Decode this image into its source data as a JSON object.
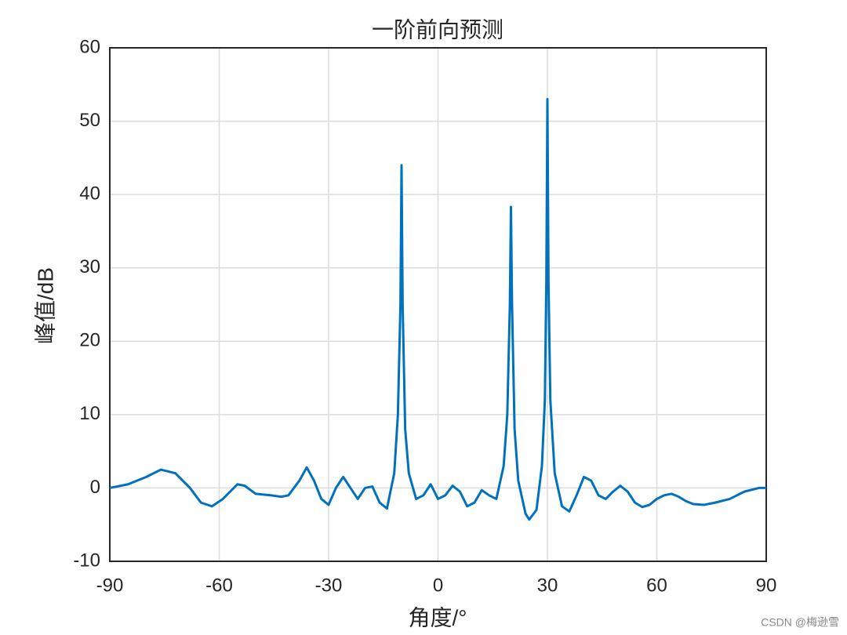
{
  "chart_data": {
    "type": "line",
    "title": "一阶前向预测",
    "x_label": "角度/°",
    "y_label": "峰值/dB",
    "x": [
      -90,
      -85,
      -80,
      -76,
      -72,
      -68,
      -65,
      -62,
      -59,
      -55,
      -53,
      -50,
      -46,
      -43,
      -41,
      -38,
      -36,
      -34,
      -32,
      -30,
      -28,
      -26,
      -24,
      -22,
      -20,
      -18,
      -16,
      -14,
      -12,
      -11,
      -10.3,
      -10,
      -9.7,
      -9,
      -8,
      -6,
      -4,
      -2,
      0,
      2,
      4,
      6,
      8,
      10,
      12,
      14,
      16,
      18,
      19,
      19.7,
      20,
      20.3,
      21,
      22,
      24,
      25,
      27,
      28.5,
      29.3,
      29.7,
      30,
      30.3,
      30.8,
      32,
      34,
      36,
      38,
      40,
      42,
      44,
      46,
      48,
      50,
      52,
      54,
      56,
      58,
      60,
      62,
      64,
      66,
      68,
      70,
      73,
      76,
      80,
      84,
      88,
      90
    ],
    "series": [
      {
        "color": "#0072bd",
        "values": [
          0,
          0.5,
          1.5,
          2.5,
          2,
          0,
          -2,
          -2.5,
          -1.5,
          0.5,
          0.3,
          -0.8,
          -1,
          -1.2,
          -1,
          1,
          2.8,
          1,
          -1.5,
          -2.3,
          0,
          1.5,
          0,
          -1.5,
          0,
          0.2,
          -2,
          -2.8,
          2,
          10,
          25,
          44,
          25,
          8,
          2,
          -1.5,
          -1,
          0.5,
          -1.5,
          -1,
          0.3,
          -0.5,
          -2.5,
          -2,
          -0.3,
          -1,
          -1.5,
          3,
          10,
          25,
          38.3,
          25,
          8,
          1,
          -3.5,
          -4.3,
          -3,
          3,
          12,
          28,
          53,
          28,
          12,
          2,
          -2.5,
          -3.2,
          -1,
          1.5,
          1,
          -1,
          -1.5,
          -0.5,
          0.3,
          -0.5,
          -2,
          -2.6,
          -2.3,
          -1.5,
          -1,
          -0.8,
          -1.2,
          -1.8,
          -2.2,
          -2.3,
          -2,
          -1.5,
          -0.5,
          0,
          0
        ]
      }
    ],
    "xlim": [
      -90,
      90
    ],
    "xticks": [
      -90,
      -60,
      -30,
      0,
      30,
      60,
      90
    ],
    "ylim": [
      -10,
      60
    ],
    "yticks": [
      -10,
      0,
      10,
      20,
      30,
      40,
      50,
      60
    ],
    "grid": true
  },
  "watermark": "CSDN @梅逊雪"
}
